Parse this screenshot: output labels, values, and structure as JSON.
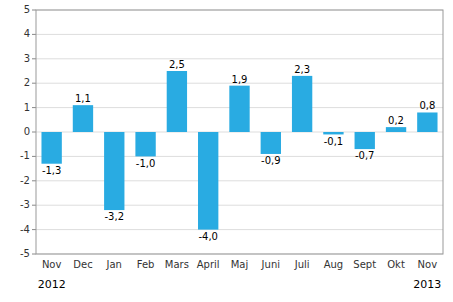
{
  "chart_data": {
    "type": "bar",
    "categories": [
      "Nov",
      "Dec",
      "Jan",
      "Feb",
      "Mars",
      "April",
      "Maj",
      "Juni",
      "Juli",
      "Aug",
      "Sept",
      "Okt",
      "Nov"
    ],
    "values": [
      -1.3,
      1.1,
      -3.2,
      -1.0,
      2.5,
      -4.0,
      1.9,
      -0.9,
      2.3,
      -0.1,
      -0.7,
      0.2,
      0.8
    ],
    "value_labels": [
      "-1,3",
      "1,1",
      "-3,2",
      "-1,0",
      "2,5",
      "-4,0",
      "1,9",
      "-0,9",
      "2,3",
      "-0,1",
      "-0,7",
      "0,2",
      "0,8"
    ],
    "data_labels": true,
    "color": "#29ABE2",
    "ylim": [
      -5,
      5
    ],
    "yticks": [
      -5,
      -4,
      -3,
      -2,
      -1,
      0,
      1,
      2,
      3,
      4,
      5
    ],
    "grid": true,
    "annotations": [
      {
        "text": "2012",
        "x": 0
      },
      {
        "text": "2013",
        "x": 12
      }
    ]
  }
}
